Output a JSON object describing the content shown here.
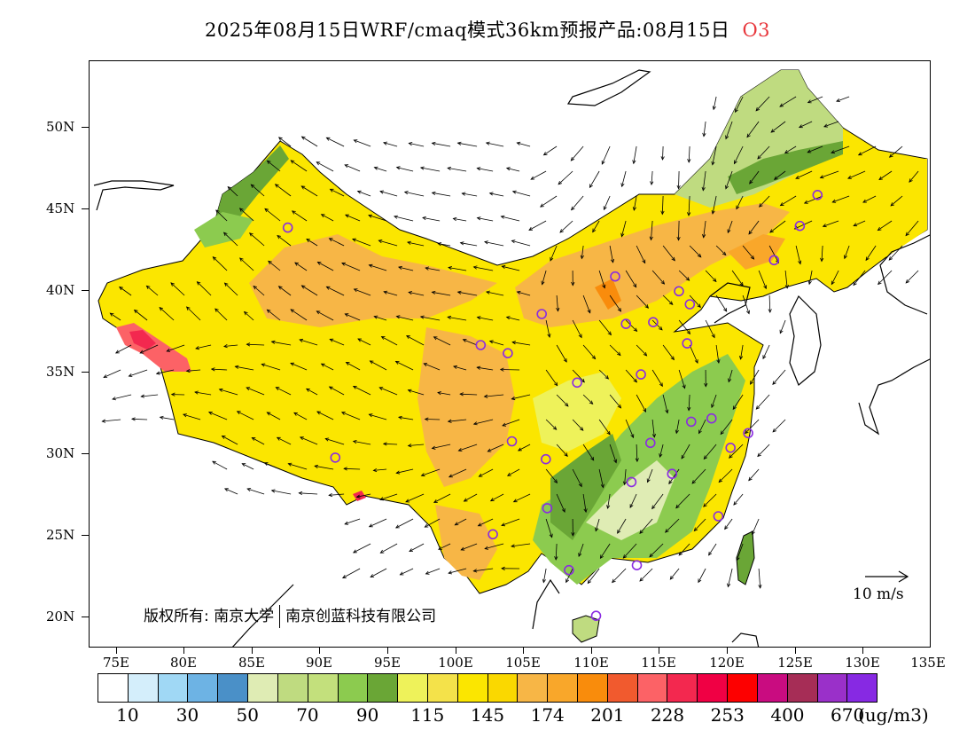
{
  "title": {
    "text": "2025年08月15日WRF/cmaq模式36km预报产品:08月15日",
    "species": "O3",
    "species_color": "#e8383d"
  },
  "axes": {
    "lat_labels": [
      "50N",
      "45N",
      "40N",
      "35N",
      "30N",
      "25N",
      "20N"
    ],
    "lon_labels": [
      "75E",
      "80E",
      "85E",
      "90E",
      "95E",
      "100E",
      "105E",
      "110E",
      "115E",
      "120E",
      "125E",
      "130E",
      "135E"
    ],
    "lon_range": [
      73,
      135
    ],
    "lat_range": [
      18,
      54
    ]
  },
  "copyright": {
    "prefix": "版权所有: ",
    "org1": "南京大学",
    "org2": "南京创蓝科技有限公司"
  },
  "wind_legend": {
    "label": "10 m/s"
  },
  "colorbar": {
    "colors": [
      "#ffffff",
      "#d4eefb",
      "#a0d8f5",
      "#6db3e4",
      "#4a90c8",
      "#dfecb4",
      "#bfdb80",
      "#c3e07c",
      "#8ccb4f",
      "#6aa636",
      "#eef25a",
      "#f4e24a",
      "#fbe600",
      "#fad800",
      "#f7b646",
      "#f9a72a",
      "#f98c0c",
      "#f15a2e",
      "#fc6266",
      "#f3284f",
      "#f00044",
      "#fd0000",
      "#c90c80",
      "#a62d56",
      "#9a30c9",
      "#8729e3"
    ],
    "labels": [
      "10",
      "30",
      "50",
      "70",
      "90",
      "115",
      "145",
      "174",
      "201",
      "228",
      "253",
      "400",
      "670"
    ],
    "unit": "(ug/m3)"
  },
  "chart_data": {
    "type": "heatmap",
    "variable": "O3",
    "unit": "ug/m3",
    "x_range": [
      73,
      135
    ],
    "y_range": [
      18,
      54
    ],
    "sites": [
      [
        87.6,
        43.8
      ],
      [
        91.1,
        29.7
      ],
      [
        101.8,
        36.6
      ],
      [
        103.8,
        36.1
      ],
      [
        104.1,
        30.7
      ],
      [
        102.7,
        25.0
      ],
      [
        106.3,
        38.5
      ],
      [
        108.9,
        34.3
      ],
      [
        106.6,
        29.6
      ],
      [
        106.7,
        26.6
      ],
      [
        108.3,
        22.8
      ],
      [
        110.3,
        20.0
      ],
      [
        111.7,
        40.8
      ],
      [
        112.5,
        37.9
      ],
      [
        114.5,
        38.0
      ],
      [
        113.6,
        34.8
      ],
      [
        112.9,
        28.2
      ],
      [
        114.3,
        30.6
      ],
      [
        115.9,
        28.7
      ],
      [
        113.3,
        23.1
      ],
      [
        116.4,
        39.9
      ],
      [
        117.2,
        39.1
      ],
      [
        117.0,
        36.7
      ],
      [
        117.3,
        31.9
      ],
      [
        118.8,
        32.1
      ],
      [
        120.2,
        30.3
      ],
      [
        121.5,
        31.2
      ],
      [
        119.3,
        26.1
      ],
      [
        123.4,
        41.8
      ],
      [
        125.3,
        43.9
      ],
      [
        126.6,
        45.8
      ]
    ]
  }
}
